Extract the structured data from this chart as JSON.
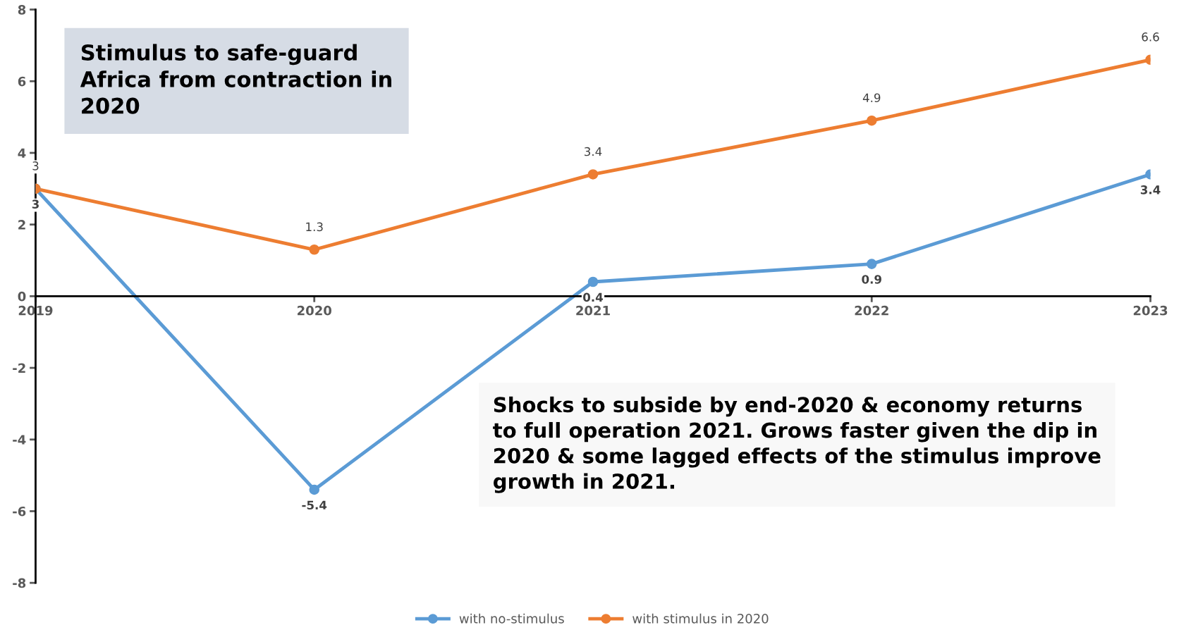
{
  "chart_data": {
    "type": "line",
    "categories": [
      "2019",
      "2020",
      "2021",
      "2022",
      "2023"
    ],
    "series": [
      {
        "name": "with no-stimulus",
        "color": "#5b9bd5",
        "values": [
          3,
          -5.4,
          0.4,
          0.9,
          3.4
        ]
      },
      {
        "name": "with stimulus in 2020",
        "color": "#ed7d31",
        "values": [
          3,
          1.3,
          3.4,
          4.9,
          6.6
        ]
      }
    ],
    "ylim": [
      -8,
      8
    ],
    "yticks": [
      -8,
      -6,
      -4,
      -2,
      0,
      2,
      4,
      6,
      8
    ],
    "grid": false,
    "legend": "bottom",
    "marker": "circle",
    "line_style": "solid",
    "data_labels": true,
    "annotations": [
      "Stimulus to safe-guard Africa from contraction in 2020",
      "Shocks to subside by end-2020 & economy returns to full operation 2021. Grows faster given the dip in 2020 & some lagged effects of the stimulus improve growth in 2021."
    ]
  }
}
